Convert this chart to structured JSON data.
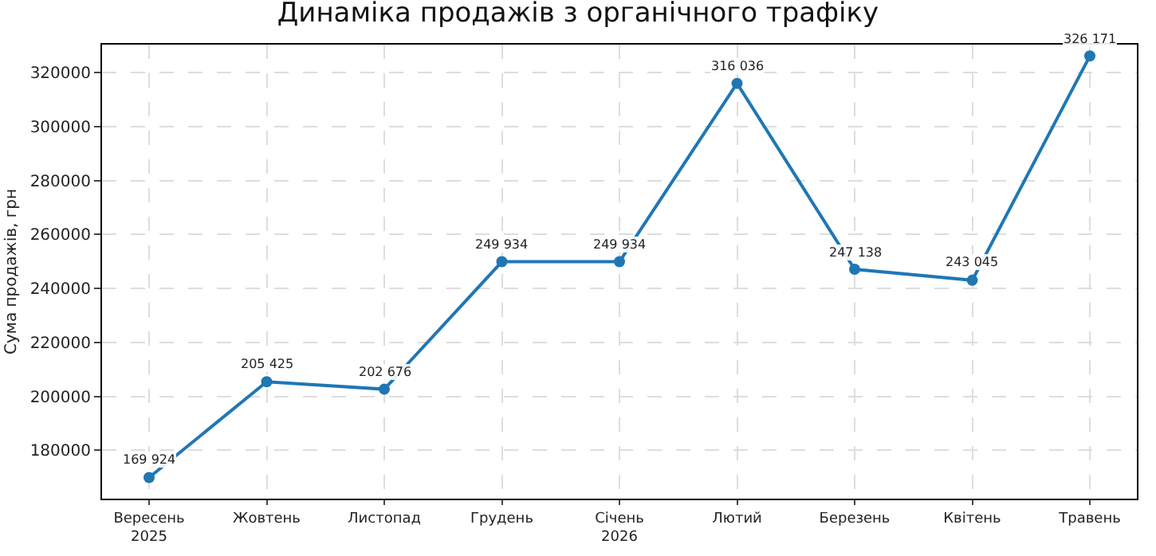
{
  "chart_data": {
    "type": "line",
    "title": "Динаміка продажів з органічного трафіку",
    "ylabel": "Сума продажів, грн",
    "categories": [
      "Вересень\n2025",
      "Жовтень",
      "Листопад",
      "Грудень",
      "Січень\n2026",
      "Лютий",
      "Березень",
      "Квітень",
      "Травень"
    ],
    "series": [
      {
        "color": "#1f77b4",
        "values": [
          169924,
          205425,
          202676,
          249934,
          249934,
          316036,
          247138,
          243045,
          326171
        ],
        "value_labels": [
          "169 924",
          "205 425",
          "202 676",
          "249 934",
          "249 934",
          "316 036",
          "247 138",
          "243 045",
          "326 171"
        ]
      }
    ],
    "ylim": [
      162100,
      330400
    ],
    "yticks": [
      180000,
      200000,
      220000,
      240000,
      260000,
      280000,
      300000,
      320000
    ],
    "grid": true,
    "marker": "circle",
    "line_style": "solid"
  }
}
